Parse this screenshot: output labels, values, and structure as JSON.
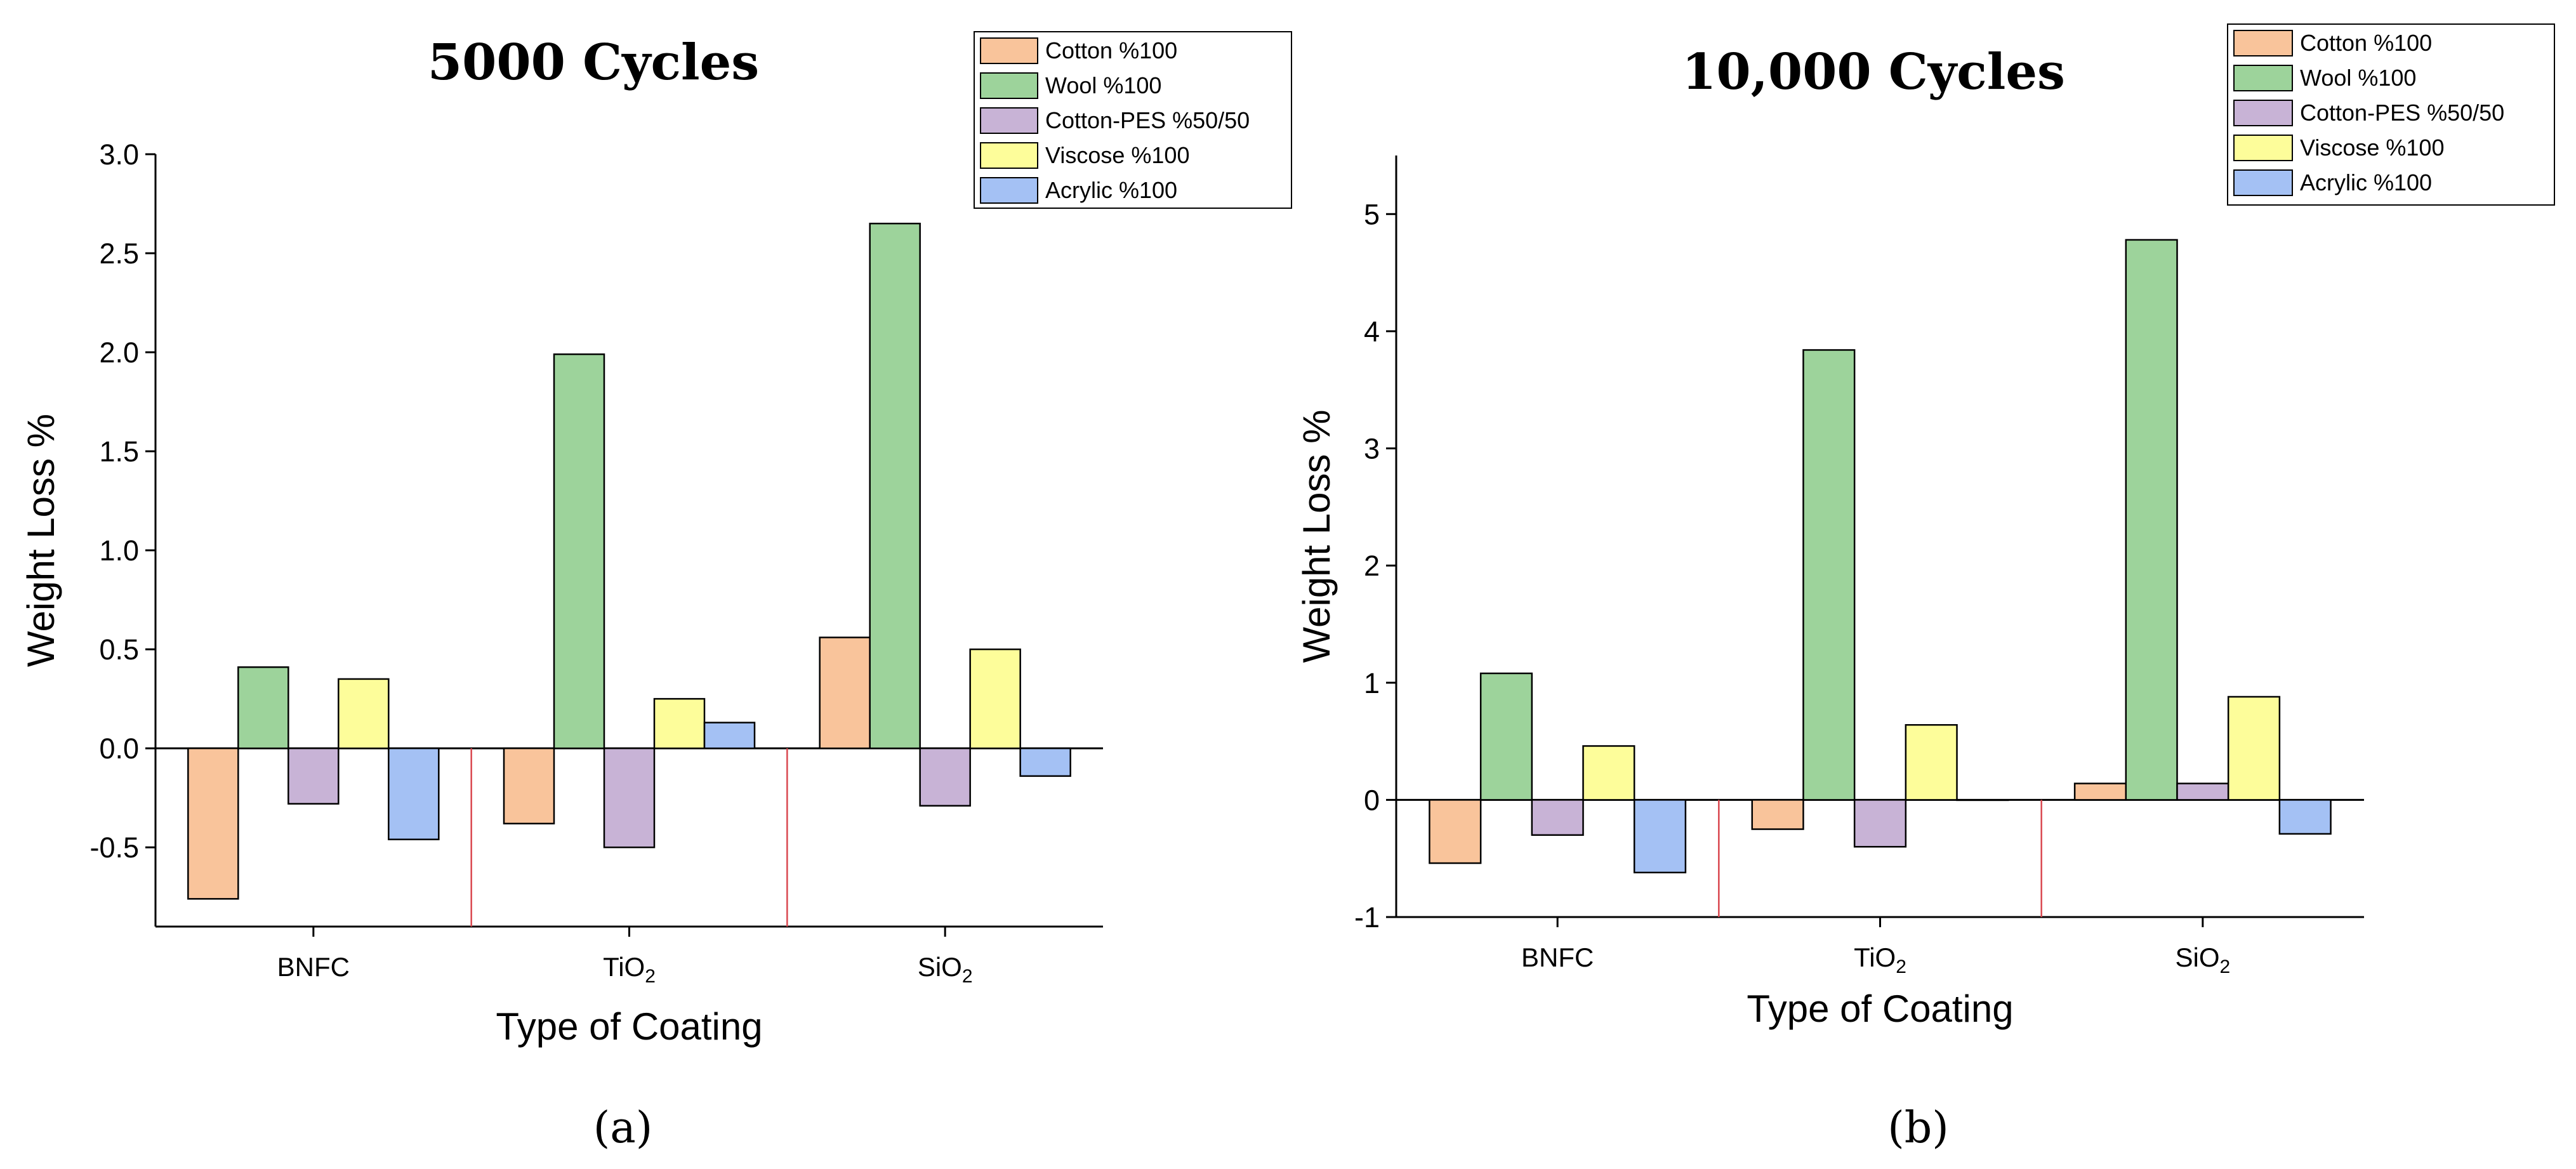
{
  "chart_data": [
    {
      "type": "bar",
      "panel_label": "(a)",
      "title": "5000 Cycles",
      "xlabel": "Type of Coating",
      "ylabel": "Weight Loss %",
      "ylim": [
        -0.9,
        3.0
      ],
      "yticks": [
        "3.0",
        "2.5",
        "2.0",
        "1.5",
        "1.0",
        "0.5",
        "0.0",
        "-0.5"
      ],
      "ytick_values": [
        3.0,
        2.5,
        2.0,
        1.5,
        1.0,
        0.5,
        0.0,
        -0.5
      ],
      "categories": [
        {
          "base": "BNFC",
          "sub": ""
        },
        {
          "base": "TiO",
          "sub": "2"
        },
        {
          "base": "SiO",
          "sub": "2"
        }
      ],
      "legend_position": "top-right",
      "series": [
        {
          "name": "Cotton %100",
          "color": "#F9C49B",
          "values": [
            -0.76,
            -0.38,
            0.56
          ]
        },
        {
          "name": "Wool %100",
          "color": "#9DD39B",
          "values": [
            0.41,
            1.99,
            2.65
          ]
        },
        {
          "name": "Cotton-PES %50/50",
          "color": "#C8B3D6",
          "values": [
            -0.28,
            -0.5,
            -0.29
          ]
        },
        {
          "name": "Viscose %100",
          "color": "#FDFD9A",
          "values": [
            0.35,
            0.25,
            0.5
          ]
        },
        {
          "name": "Acrylic %100",
          "color": "#A4C1F4",
          "values": [
            -0.46,
            0.13,
            -0.14
          ]
        }
      ]
    },
    {
      "type": "bar",
      "panel_label": "(b)",
      "title": "10,000 Cycles",
      "xlabel": "Type of Coating",
      "ylabel": "Weight Loss %",
      "ylim": [
        -1.0,
        5.5
      ],
      "yticks": [
        "5",
        "4",
        "3",
        "2",
        "1",
        "0",
        "-1"
      ],
      "ytick_values": [
        5,
        4,
        3,
        2,
        1,
        0,
        -1
      ],
      "categories": [
        {
          "base": "BNFC",
          "sub": ""
        },
        {
          "base": "TiO",
          "sub": "2"
        },
        {
          "base": "SiO",
          "sub": "2"
        }
      ],
      "legend_position": "top-right",
      "series": [
        {
          "name": "Cotton %100",
          "color": "#F9C49B",
          "values": [
            -0.54,
            -0.25,
            0.14
          ]
        },
        {
          "name": "Wool %100",
          "color": "#9DD39B",
          "values": [
            1.08,
            3.84,
            4.78
          ]
        },
        {
          "name": "Cotton-PES %50/50",
          "color": "#C8B3D6",
          "values": [
            -0.3,
            -0.4,
            0.14
          ]
        },
        {
          "name": "Viscose %100",
          "color": "#FDFD9A",
          "values": [
            0.46,
            0.64,
            0.88
          ]
        },
        {
          "name": "Acrylic %100",
          "color": "#A4C1F4",
          "values": [
            -0.62,
            0.0,
            -0.29
          ]
        }
      ]
    }
  ]
}
